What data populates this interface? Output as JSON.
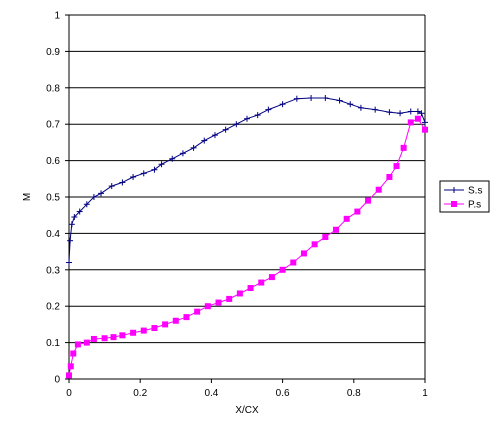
{
  "chart_data": {
    "type": "line",
    "title": "",
    "xlabel": "X/CX",
    "ylabel": "M",
    "xlim": [
      0,
      1
    ],
    "ylim": [
      0,
      1
    ],
    "xticks": [
      "0",
      "0.2",
      "0.4",
      "0.6",
      "0.8",
      "1"
    ],
    "yticks": [
      "0",
      "0.1",
      "0.2",
      "0.3",
      "0.4",
      "0.5",
      "0.6",
      "0.7",
      "0.8",
      "0.9",
      "1"
    ],
    "grid": "horizontal major gridlines",
    "legend": {
      "placement": "right"
    },
    "series": [
      {
        "name": "S.s",
        "color": "#000080",
        "marker": "plus",
        "points": [
          [
            0.0,
            0.32
          ],
          [
            0.003,
            0.38
          ],
          [
            0.008,
            0.425
          ],
          [
            0.015,
            0.445
          ],
          [
            0.03,
            0.46
          ],
          [
            0.05,
            0.48
          ],
          [
            0.07,
            0.5
          ],
          [
            0.09,
            0.51
          ],
          [
            0.12,
            0.53
          ],
          [
            0.15,
            0.54
          ],
          [
            0.18,
            0.555
          ],
          [
            0.21,
            0.565
          ],
          [
            0.24,
            0.575
          ],
          [
            0.26,
            0.59
          ],
          [
            0.29,
            0.605
          ],
          [
            0.32,
            0.62
          ],
          [
            0.35,
            0.635
          ],
          [
            0.38,
            0.655
          ],
          [
            0.41,
            0.67
          ],
          [
            0.44,
            0.685
          ],
          [
            0.47,
            0.7
          ],
          [
            0.5,
            0.715
          ],
          [
            0.53,
            0.725
          ],
          [
            0.56,
            0.74
          ],
          [
            0.6,
            0.755
          ],
          [
            0.64,
            0.77
          ],
          [
            0.68,
            0.772
          ],
          [
            0.72,
            0.772
          ],
          [
            0.76,
            0.765
          ],
          [
            0.79,
            0.755
          ],
          [
            0.82,
            0.745
          ],
          [
            0.86,
            0.74
          ],
          [
            0.9,
            0.733
          ],
          [
            0.93,
            0.73
          ],
          [
            0.96,
            0.735
          ],
          [
            0.98,
            0.735
          ],
          [
            0.99,
            0.73
          ],
          [
            1.0,
            0.705
          ]
        ]
      },
      {
        "name": "P.s",
        "color": "#ff00ff",
        "marker": "square",
        "points": [
          [
            0.0,
            0.01
          ],
          [
            0.005,
            0.035
          ],
          [
            0.012,
            0.07
          ],
          [
            0.025,
            0.095
          ],
          [
            0.05,
            0.1
          ],
          [
            0.07,
            0.11
          ],
          [
            0.1,
            0.112
          ],
          [
            0.125,
            0.115
          ],
          [
            0.15,
            0.12
          ],
          [
            0.18,
            0.127
          ],
          [
            0.21,
            0.133
          ],
          [
            0.24,
            0.14
          ],
          [
            0.27,
            0.15
          ],
          [
            0.3,
            0.16
          ],
          [
            0.33,
            0.17
          ],
          [
            0.36,
            0.185
          ],
          [
            0.39,
            0.2
          ],
          [
            0.42,
            0.21
          ],
          [
            0.45,
            0.22
          ],
          [
            0.48,
            0.235
          ],
          [
            0.51,
            0.25
          ],
          [
            0.54,
            0.265
          ],
          [
            0.57,
            0.28
          ],
          [
            0.6,
            0.3
          ],
          [
            0.63,
            0.32
          ],
          [
            0.66,
            0.345
          ],
          [
            0.69,
            0.37
          ],
          [
            0.72,
            0.39
          ],
          [
            0.75,
            0.41
          ],
          [
            0.78,
            0.44
          ],
          [
            0.81,
            0.46
          ],
          [
            0.84,
            0.49
          ],
          [
            0.87,
            0.52
          ],
          [
            0.9,
            0.555
          ],
          [
            0.92,
            0.585
          ],
          [
            0.94,
            0.635
          ],
          [
            0.96,
            0.705
          ],
          [
            0.98,
            0.715
          ],
          [
            1.0,
            0.685
          ]
        ]
      }
    ]
  }
}
